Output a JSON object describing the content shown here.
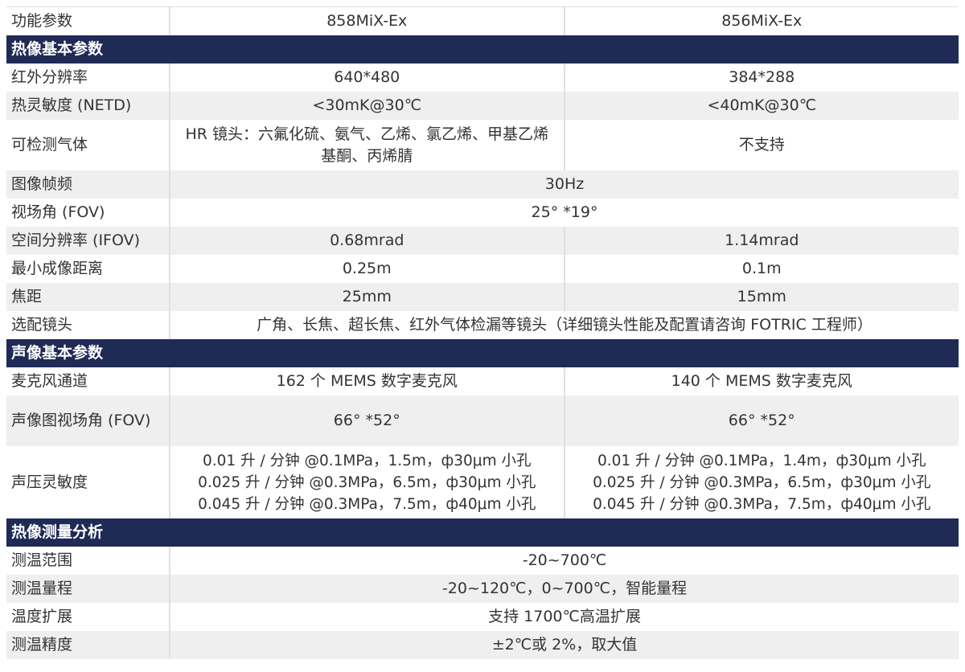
{
  "colors": {
    "section_bg": "#1f2a55",
    "alt_row_bg": "#efefef"
  },
  "header": {
    "label": "功能参数",
    "model_a": "858MiX-Ex",
    "model_b": "856MiX-Ex"
  },
  "sections": [
    {
      "title": "热像基本参数",
      "rows": [
        {
          "label": "红外分辨率",
          "a": "640*480",
          "b": "384*288"
        },
        {
          "label": "热灵敏度 (NETD)",
          "a": "<30mK@30℃",
          "b": "<40mK@30℃"
        },
        {
          "label": "可检测气体",
          "a": "HR 镜头：六氟化硫、氨气、乙烯、氯乙烯、甲基乙烯基酮、丙烯腈",
          "b": "不支持"
        },
        {
          "label": "图像帧频",
          "merged": "30Hz"
        },
        {
          "label": "视场角 (FOV)",
          "merged": "25° *19°"
        },
        {
          "label": "空间分辨率 (IFOV)",
          "a": "0.68mrad",
          "b": "1.14mrad"
        },
        {
          "label": "最小成像距离",
          "a": "0.25m",
          "b": "0.1m"
        },
        {
          "label": "焦距",
          "a": "25mm",
          "b": "15mm"
        },
        {
          "label": "选配镜头",
          "merged": "广角、长焦、超长焦、红外气体检漏等镜头（详细镜头性能及配置请咨询 FOTRIC 工程师）"
        }
      ]
    },
    {
      "title": "声像基本参数",
      "rows": [
        {
          "label": "麦克风通道",
          "a": "162 个 MEMS 数字麦克风",
          "b": "140 个 MEMS 数字麦克风"
        },
        {
          "label": "声像图视场角 (FOV)",
          "a": "66° *52°",
          "b": "66° *52°"
        },
        {
          "label": "声压灵敏度",
          "a_lines": [
            "0.01 升 / 分钟 @0.1MPa，1.5m，ф30μm 小孔",
            "0.025 升 / 分钟 @0.3MPa，6.5m，ф30μm 小孔",
            "0.045 升 / 分钟 @0.3MPa，7.5m，ф40μm 小孔"
          ],
          "b_lines": [
            "0.01 升 / 分钟 @0.1MPa，1.4m，ф30μm 小孔",
            "0.025 升 / 分钟 @0.3MPa，6.5m，ф30μm 小孔",
            "0.045 升 / 分钟 @0.3MPa，7.5m，ф40μm 小孔"
          ]
        }
      ]
    },
    {
      "title": "热像测量分析",
      "rows": [
        {
          "label": "测温范围",
          "merged": "-20~700℃"
        },
        {
          "label": "测温量程",
          "merged": "-20~120℃，0~700℃，智能量程"
        },
        {
          "label": "温度扩展",
          "merged": "支持 1700℃高温扩展"
        },
        {
          "label": "测温精度",
          "merged": "±2℃或 2%，取大值"
        }
      ]
    }
  ]
}
